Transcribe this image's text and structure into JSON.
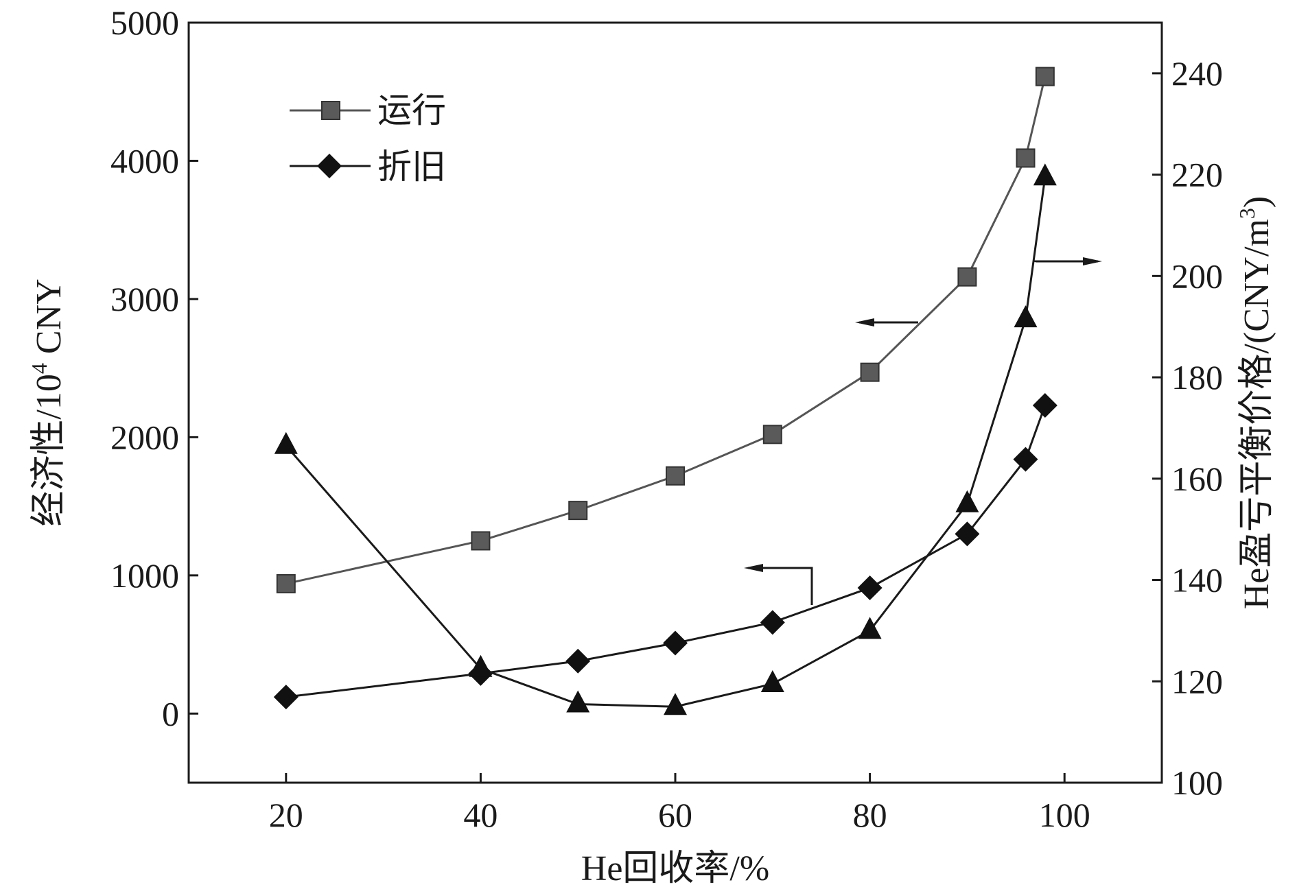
{
  "chart_data": {
    "type": "line",
    "x_axis": {
      "label": "He回收率/%",
      "range": [
        10,
        110
      ],
      "ticks": [
        20,
        40,
        60,
        80,
        100
      ],
      "tick_labels": [
        "20",
        "40",
        "60",
        "80",
        "100"
      ]
    },
    "y_left": {
      "label_main": "经济性/10",
      "label_sup": "4",
      "label_tail": " CNY",
      "range": [
        -500,
        5000
      ],
      "ticks": [
        0,
        1000,
        2000,
        3000,
        4000,
        5000
      ],
      "tick_labels": [
        "0",
        "1000",
        "2000",
        "3000",
        "4000",
        "5000"
      ]
    },
    "y_right": {
      "label_main": "He盈亏平衡价格/(CNY/m",
      "label_sup": "3",
      "label_tail": ")",
      "range": [
        100,
        250
      ],
      "ticks": [
        100,
        120,
        140,
        160,
        180,
        200,
        220,
        240
      ],
      "tick_labels": [
        "100",
        "120",
        "140",
        "160",
        "180",
        "200",
        "220",
        "240"
      ]
    },
    "series": [
      {
        "name": "运行",
        "axis": "left",
        "marker": "square",
        "color": "#555555",
        "x": [
          20,
          40,
          50,
          60,
          70,
          80,
          90,
          96,
          98
        ],
        "y": [
          940,
          1250,
          1470,
          1720,
          2020,
          2470,
          3160,
          4020,
          4610
        ]
      },
      {
        "name": "折旧",
        "axis": "left",
        "marker": "diamond",
        "color": "#1a1a1a",
        "x": [
          20,
          40,
          50,
          60,
          70,
          80,
          90,
          96,
          98
        ],
        "y": [
          120,
          290,
          380,
          510,
          660,
          910,
          1300,
          1840,
          2230
        ]
      },
      {
        "axis": "right",
        "marker": "triangle",
        "color": "#1a1a1a",
        "x": [
          20,
          40,
          50,
          60,
          70,
          80,
          90,
          96,
          98
        ],
        "y": [
          166.5,
          122.5,
          115.5,
          115,
          119.5,
          130,
          155,
          191.5,
          219.5
        ]
      }
    ],
    "legend_position": "top-left",
    "grid": false
  }
}
